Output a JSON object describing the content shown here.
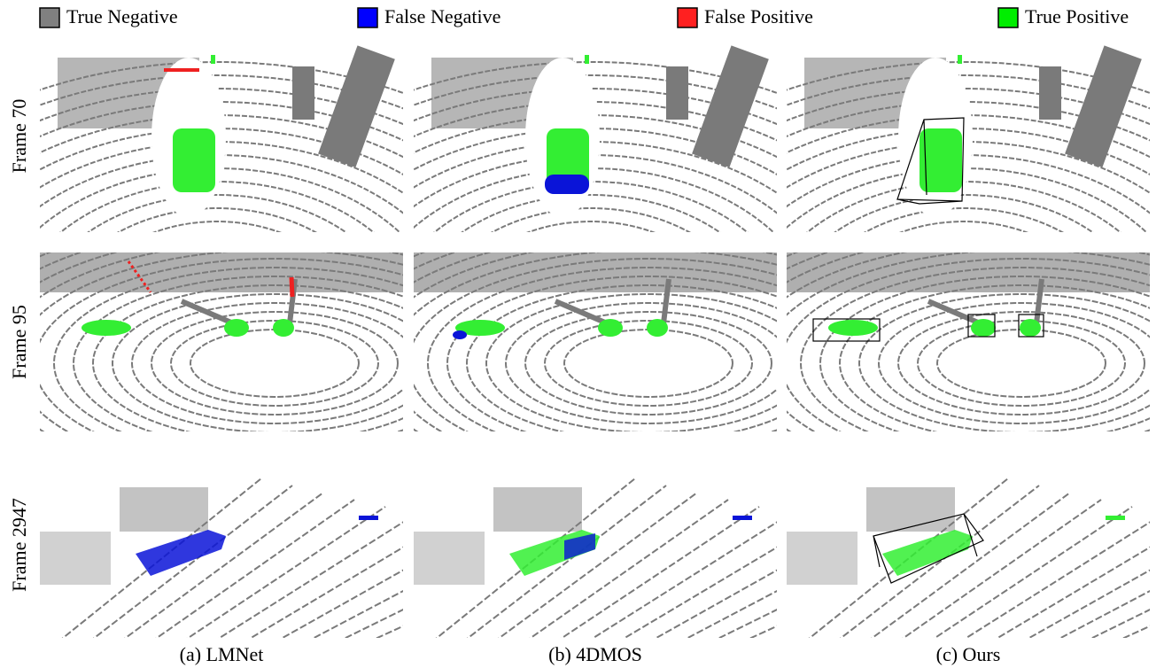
{
  "legend": {
    "items": [
      {
        "label": "True Negative",
        "color": "#808080"
      },
      {
        "label": "False Negative",
        "color": "#0000ff"
      },
      {
        "label": "False Positive",
        "color": "#ff2020"
      },
      {
        "label": "True Positive",
        "color": "#00ee00"
      }
    ]
  },
  "rows": [
    "Frame 70",
    "Frame 95",
    "Frame 2947"
  ],
  "columns": [
    "(a) LMNet",
    "(b) 4DMOS",
    "(c) Ours"
  ]
}
